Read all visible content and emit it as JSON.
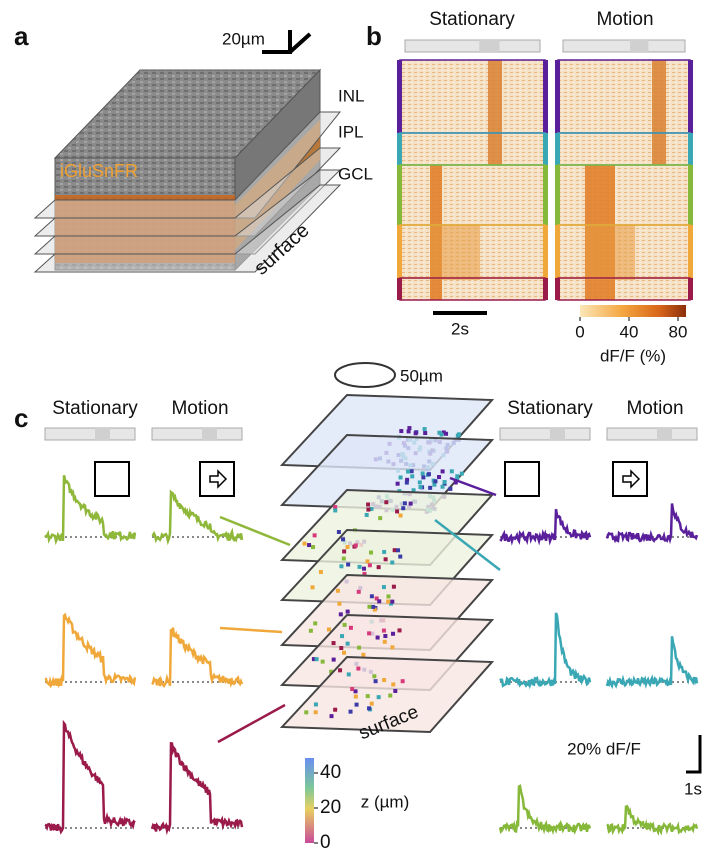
{
  "panel_a": {
    "label": "a",
    "scale_bar": "20µm",
    "layers": [
      "INL",
      "IPL",
      "GCL"
    ],
    "indicator": "iGluSnFR",
    "surface": "surface"
  },
  "panel_b": {
    "label": "b",
    "conditions": [
      "Stationary",
      "Motion"
    ],
    "time_scale": "2s",
    "colorbar": {
      "ticks": [
        0,
        40,
        80
      ],
      "label": "dF/F (%)"
    }
  },
  "panel_c": {
    "label": "c",
    "scale_bar": "50µm",
    "left_conditions": [
      "Stationary",
      "Motion"
    ],
    "right_conditions": [
      "Stationary",
      "Motion"
    ],
    "surface": "surface",
    "amplitude_scale": "20% dF/F",
    "time_scale": "1s",
    "depth_colorbar": {
      "ticks": [
        40,
        20,
        0
      ],
      "label": "z (µm)"
    }
  }
}
